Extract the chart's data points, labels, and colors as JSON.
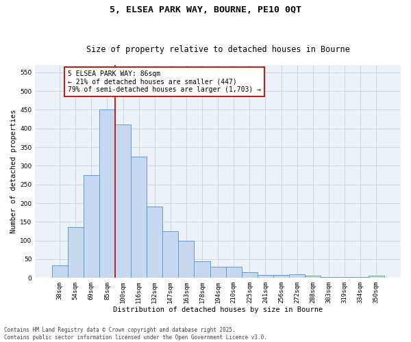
{
  "title1": "5, ELSEA PARK WAY, BOURNE, PE10 0QT",
  "title2": "Size of property relative to detached houses in Bourne",
  "xlabel": "Distribution of detached houses by size in Bourne",
  "ylabel": "Number of detached properties",
  "categories": [
    "38sqm",
    "54sqm",
    "69sqm",
    "85sqm",
    "100sqm",
    "116sqm",
    "132sqm",
    "147sqm",
    "163sqm",
    "178sqm",
    "194sqm",
    "210sqm",
    "225sqm",
    "241sqm",
    "256sqm",
    "272sqm",
    "288sqm",
    "303sqm",
    "319sqm",
    "334sqm",
    "350sqm"
  ],
  "values": [
    33,
    135,
    275,
    450,
    410,
    325,
    190,
    125,
    100,
    45,
    30,
    30,
    15,
    7,
    7,
    10,
    5,
    3,
    2,
    2,
    6
  ],
  "bar_color": "#c6d9f0",
  "bar_edge_color": "#5b9bd5",
  "bar_linewidth": 0.7,
  "red_line_x": 3.5,
  "annotation_line0": "5 ELSEA PARK WAY: 86sqm",
  "annotation_line1": "← 21% of detached houses are smaller (447)",
  "annotation_line2": "79% of semi-detached houses are larger (1,703) →",
  "annotation_box_color": "#ffffff",
  "annotation_box_edgecolor": "#cc0000",
  "red_line_color": "#cc0000",
  "background_color": "#edf2f9",
  "ylim": [
    0,
    570
  ],
  "yticks": [
    0,
    50,
    100,
    150,
    200,
    250,
    300,
    350,
    400,
    450,
    500,
    550
  ],
  "footer1": "Contains HM Land Registry data © Crown copyright and database right 2025.",
  "footer2": "Contains public sector information licensed under the Open Government Licence v3.0.",
  "title_fontsize": 9.5,
  "subtitle_fontsize": 8.5,
  "axis_label_fontsize": 7.5,
  "tick_fontsize": 6.5,
  "annotation_fontsize": 7.0,
  "footer_fontsize": 5.5
}
